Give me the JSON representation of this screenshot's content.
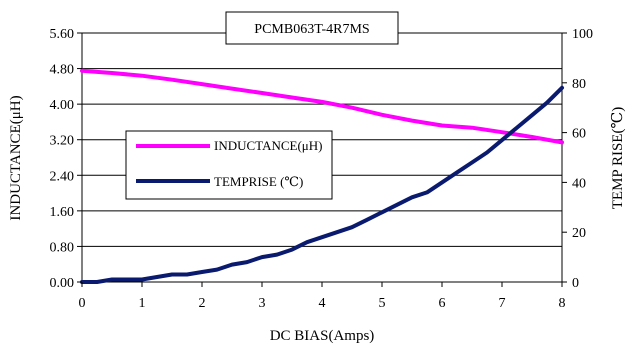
{
  "chart_data": {
    "type": "line",
    "title": "PCMB063T-4R7MS",
    "xlabel": "DC BIAS(Amps)",
    "ylabel_left": "INDUCTANCE(μH)",
    "ylabel_right": "TEMP RISE(℃)",
    "xlim": [
      0,
      8
    ],
    "ylim_left": [
      0,
      5.6
    ],
    "ylim_right": [
      0,
      100
    ],
    "x_ticks": [
      "0",
      "1",
      "2",
      "3",
      "4",
      "5",
      "6",
      "7",
      "8"
    ],
    "y_left_ticks": [
      "0.00",
      "0.80",
      "1.60",
      "2.40",
      "3.20",
      "4.00",
      "4.80",
      "5.60"
    ],
    "y_right_ticks": [
      "0",
      "20",
      "40",
      "60",
      "80",
      "100"
    ],
    "grid": "horizontal",
    "legend": "center-left",
    "series": [
      {
        "name": "INDUCTANCE(μH)",
        "axis": "left",
        "color": "#ff00ff",
        "x": [
          0,
          0.5,
          1,
          1.5,
          2,
          2.5,
          3,
          3.5,
          4,
          4.5,
          5,
          5.5,
          6,
          6.5,
          7,
          7.5,
          8
        ],
        "values": [
          4.75,
          4.7,
          4.64,
          4.55,
          4.45,
          4.35,
          4.25,
          4.15,
          4.05,
          3.92,
          3.76,
          3.63,
          3.52,
          3.47,
          3.37,
          3.26,
          3.14
        ]
      },
      {
        "name": "TEMPRISE (℃)",
        "axis": "right",
        "color": "#0a1a6e",
        "x": [
          0,
          0.25,
          0.5,
          0.75,
          1,
          1.25,
          1.5,
          1.75,
          2,
          2.25,
          2.5,
          2.75,
          3,
          3.25,
          3.5,
          3.75,
          4,
          4.25,
          4.5,
          4.75,
          5,
          5.25,
          5.5,
          5.75,
          6,
          6.25,
          6.5,
          6.75,
          7,
          7.25,
          7.5,
          7.75,
          8
        ],
        "values": [
          0,
          0,
          1,
          1,
          1,
          2,
          3,
          3,
          4,
          5,
          7,
          8,
          10,
          11,
          13,
          16,
          18,
          20,
          22,
          25,
          28,
          31,
          34,
          36,
          40,
          44,
          48,
          52,
          57,
          62,
          67,
          72,
          78
        ]
      }
    ]
  }
}
